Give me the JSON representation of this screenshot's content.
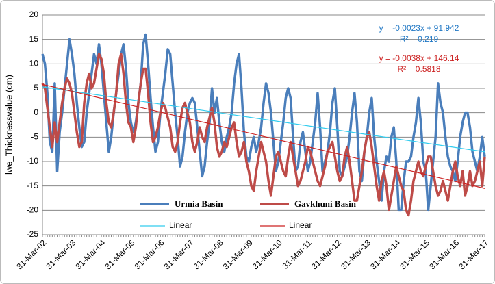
{
  "chart_data": {
    "type": "line",
    "y_label": "lwe_Thicknessvalue (cm)",
    "categories": [
      "31-Mar-02",
      null,
      null,
      null,
      null,
      null,
      null,
      null,
      null,
      null,
      null,
      null,
      "31-Mar-03",
      null,
      null,
      null,
      null,
      null,
      null,
      null,
      null,
      null,
      null,
      null,
      "31-Mar-04",
      null,
      null,
      null,
      null,
      null,
      null,
      null,
      null,
      null,
      null,
      null,
      "31-Mar-05",
      null,
      null,
      null,
      null,
      null,
      null,
      null,
      null,
      null,
      null,
      null,
      "31-Mar-06",
      null,
      null,
      null,
      null,
      null,
      null,
      null,
      null,
      null,
      null,
      null,
      "31-Mar-07",
      null,
      null,
      null,
      null,
      null,
      null,
      null,
      null,
      null,
      null,
      null,
      "31-Mar-08",
      null,
      null,
      null,
      null,
      null,
      null,
      null,
      null,
      null,
      null,
      null,
      "31-Mar-09",
      null,
      null,
      null,
      null,
      null,
      null,
      null,
      null,
      null,
      null,
      null,
      "31-Mar-10",
      null,
      null,
      null,
      null,
      null,
      null,
      null,
      null,
      null,
      null,
      null,
      "31-Mar-11",
      null,
      null,
      null,
      null,
      null,
      null,
      null,
      null,
      null,
      null,
      null,
      "31-Mar-12",
      null,
      null,
      null,
      null,
      null,
      null,
      null,
      null,
      null,
      null,
      null,
      "31-Mar-13",
      null,
      null,
      null,
      null,
      null,
      null,
      null,
      null,
      null,
      null,
      null,
      "31-Mar-14",
      null,
      null,
      null,
      null,
      null,
      null,
      null,
      null,
      null,
      null,
      null,
      "31-Mar-15",
      null,
      null,
      null,
      null,
      null,
      null,
      null,
      null,
      null,
      null,
      null,
      "31-Mar-16",
      null,
      null,
      null,
      null,
      null,
      null,
      null,
      null,
      null,
      null,
      null,
      "31-Mar-17"
    ],
    "series": [
      {
        "name": "Urmia Basin",
        "color": "#4a7ebb",
        "values": [
          12,
          10,
          4,
          -6,
          -8,
          6,
          -12,
          -4,
          0,
          5,
          10,
          15,
          12,
          8,
          2,
          -3,
          -7,
          -6,
          0,
          4,
          8,
          12,
          10,
          14,
          10,
          4,
          -2,
          -8,
          -5,
          0,
          4,
          8,
          12,
          14,
          9,
          2,
          -2,
          -4,
          -2,
          2,
          6,
          14,
          16,
          10,
          3,
          -3,
          -8,
          -6,
          0,
          4,
          8,
          13,
          12,
          6,
          0,
          -5,
          -11,
          -9,
          -4,
          0,
          2,
          3,
          2,
          -3,
          -8,
          -13,
          -11,
          -6,
          -2,
          5,
          0,
          3,
          -2,
          -6,
          -8,
          -5,
          -3,
          0,
          6,
          10,
          12,
          5,
          -4,
          -9,
          -10,
          -7,
          -5,
          -8,
          -6,
          -3,
          2,
          6,
          4,
          0,
          -6,
          -12,
          -10,
          -6,
          -2,
          3,
          5,
          3,
          -5,
          -12,
          -11,
          -6,
          -4,
          -8,
          -12,
          -10,
          -6,
          -2,
          4,
          -3,
          -12,
          -10,
          -8,
          -4,
          2,
          5,
          -3,
          -12,
          -13,
          -11,
          -9,
          -5,
          0,
          4,
          -2,
          -12,
          -14,
          -8,
          -5,
          0,
          3,
          -5,
          -10,
          -14,
          -18,
          -12,
          -9,
          -10,
          -5,
          -3,
          -10,
          -20,
          -20,
          -14,
          -10,
          -10,
          -9,
          -5,
          -2,
          3,
          -2,
          -10,
          -12,
          -20,
          -15,
          -10,
          -5,
          6,
          2,
          0,
          -5,
          -9,
          -11,
          -12,
          -14,
          -10,
          -5,
          -2,
          0,
          0,
          -3,
          -8,
          -10,
          -12,
          -9,
          -5,
          -9
        ]
      },
      {
        "name": "Gavkhuni Basin",
        "color": "#be4b48",
        "values": [
          6,
          5,
          1,
          -3,
          -7,
          -2,
          -6,
          -2,
          2,
          5,
          7,
          6,
          4,
          0,
          -4,
          -7,
          -6,
          2,
          6,
          8,
          5,
          6,
          9,
          12,
          11,
          8,
          2,
          -2,
          -3,
          0,
          4,
          10,
          12,
          8,
          2,
          -2,
          -3,
          -6,
          -3,
          2,
          6,
          9,
          9,
          4,
          -2,
          -6,
          -5,
          -3,
          0,
          2,
          1,
          -1,
          -3,
          -7,
          -8,
          -6,
          -2,
          1,
          2,
          0,
          -2,
          -6,
          -8,
          -6,
          -3,
          -5,
          -6,
          -3,
          -1,
          1,
          -2,
          -7,
          -9,
          -8,
          -6,
          -7,
          -5,
          -3,
          -2,
          -6,
          -9,
          -8,
          -6,
          -10,
          -12,
          -15,
          -16,
          -12,
          -9,
          -6,
          -8,
          -10,
          -14,
          -17,
          -13,
          -9,
          -8,
          -10,
          -12,
          -13,
          -9,
          -6,
          -9,
          -12,
          -15,
          -14,
          -12,
          -10,
          -7,
          -8,
          -10,
          -12,
          -14,
          -15,
          -13,
          -11,
          -8,
          -7,
          -6,
          -9,
          -12,
          -14,
          -13,
          -9,
          -7,
          -10,
          -14,
          -18,
          -18,
          -15,
          -12,
          -8,
          -5,
          -4,
          -7,
          -11,
          -15,
          -18,
          -14,
          -12,
          -15,
          -20,
          -17,
          -14,
          -11,
          -13,
          -15,
          -16,
          -20,
          -21,
          -18,
          -14,
          -12,
          -10,
          -12,
          -13,
          -11,
          -9,
          -9,
          -12,
          -15,
          -17,
          -16,
          -14,
          -16,
          -18,
          -15,
          -12,
          -10,
          -13,
          -15,
          -12,
          -17,
          -15,
          -12,
          -15,
          -14,
          -12,
          -10,
          -15,
          -9
        ]
      }
    ],
    "trendlines": [
      {
        "name": "Linear",
        "color": "#33ccee",
        "equation": "y = -0.0023x + 91.942",
        "r_squared": "R² = 0.219",
        "values": [
          5.3,
          -8
        ]
      },
      {
        "name": "Linear",
        "color": "#cc2222",
        "equation": "y = -0.0038x + 146.14",
        "r_squared": "R² = 0.5818",
        "values": [
          5.8,
          -15.5
        ]
      }
    ],
    "ylim": [
      -25,
      20
    ],
    "yticks": [
      -25,
      -20,
      -15,
      -10,
      -5,
      0,
      5,
      10,
      15,
      20
    ],
    "grid": true
  }
}
